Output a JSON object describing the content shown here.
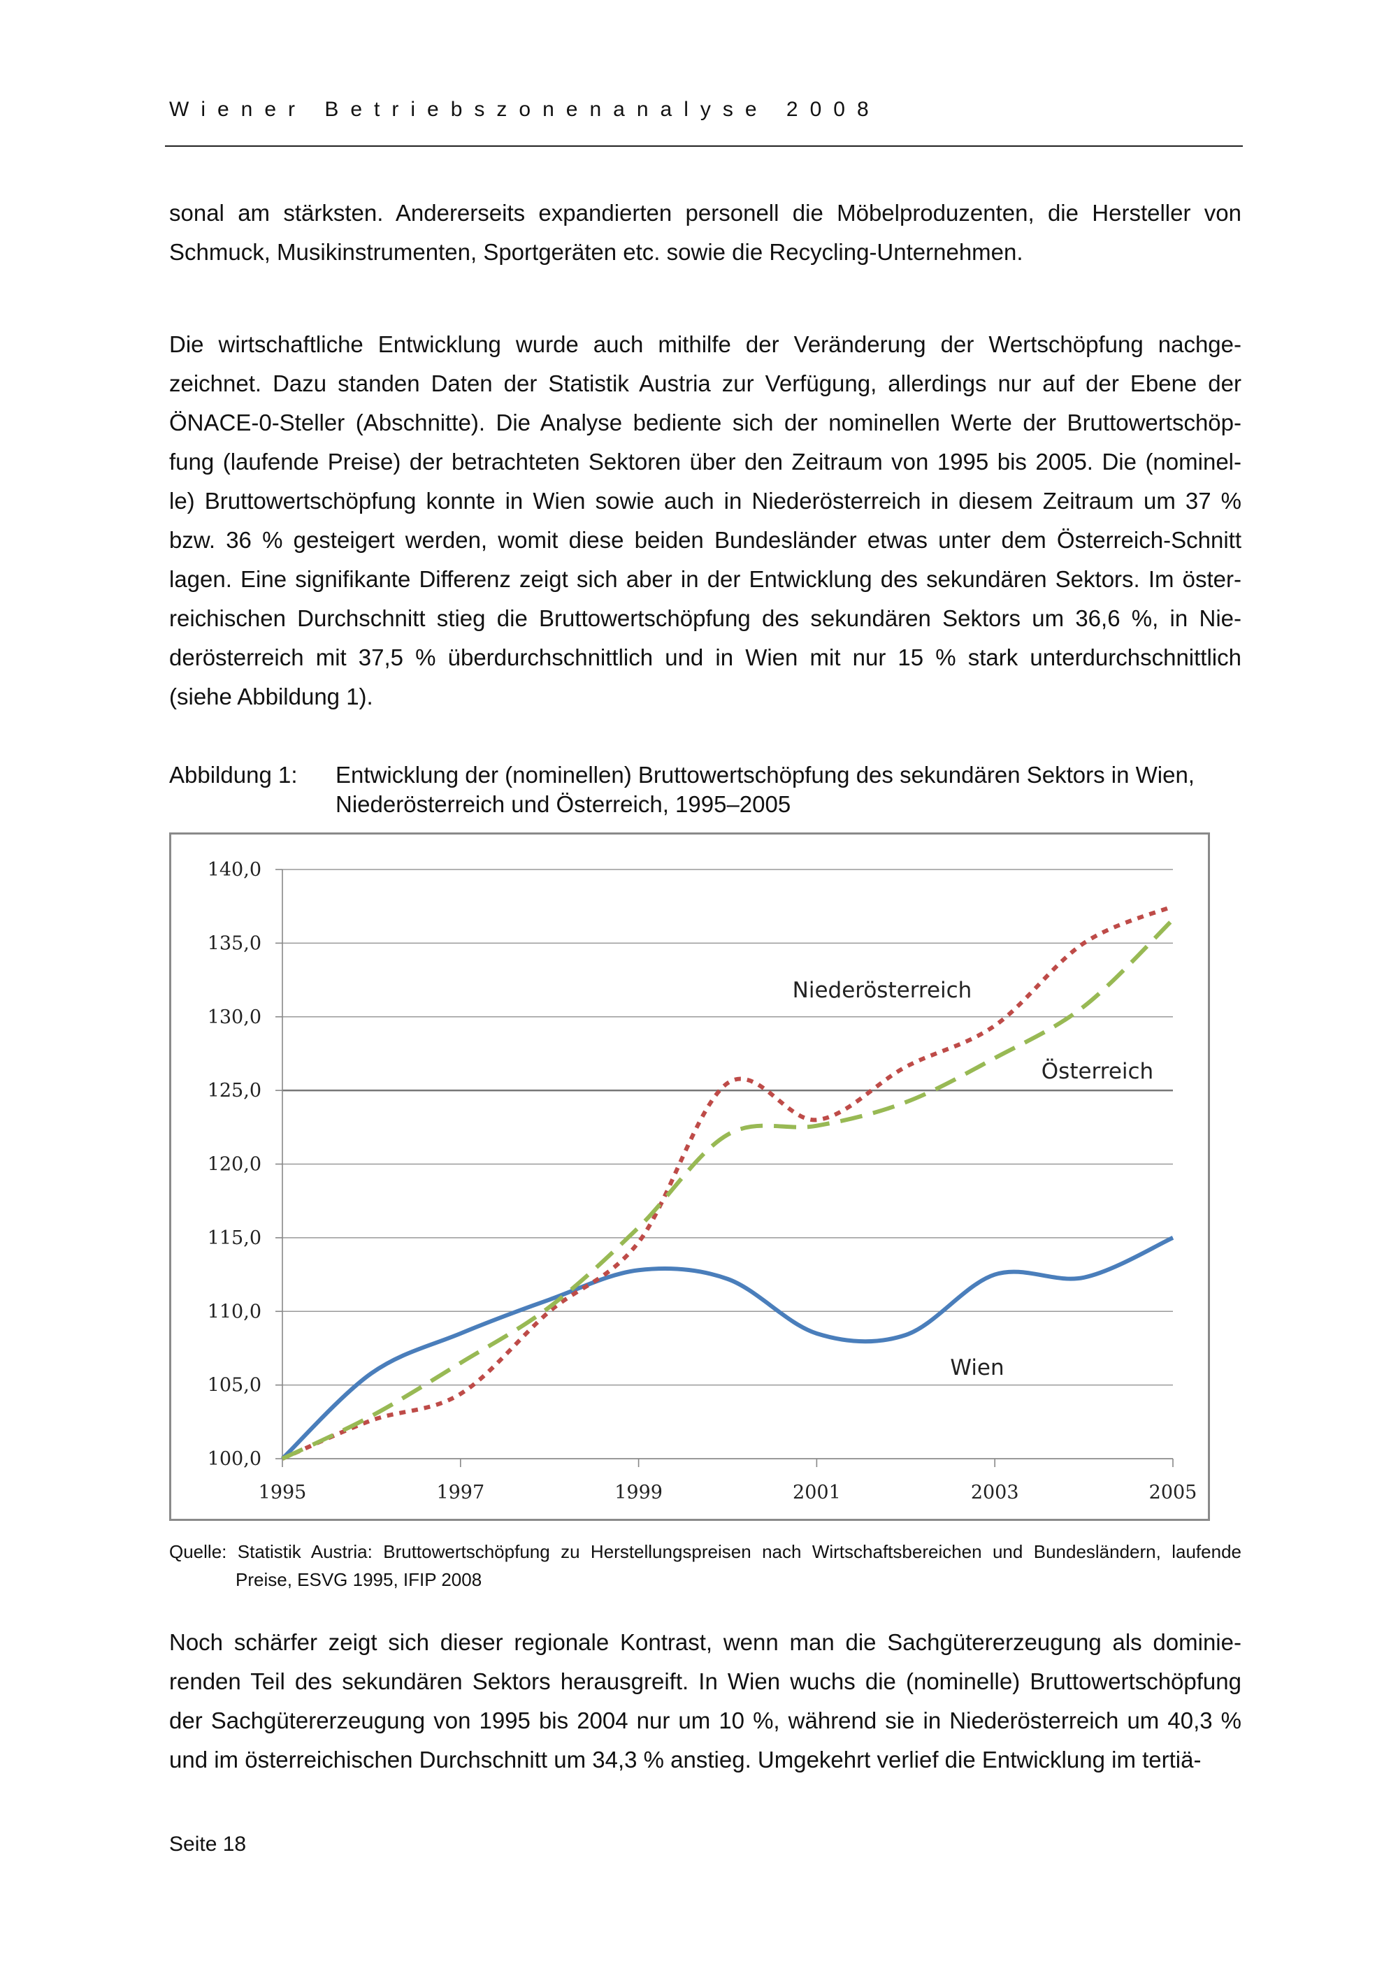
{
  "header": {
    "title": "Wiener Betriebszonenanalyse 2008"
  },
  "paragraphs": [
    [
      "sonal am stärksten. Andererseits expandierten personell die Möbelproduzenten, die Hersteller von",
      "Schmuck, Musikinstrumenten, Sportgeräten etc. sowie die Recycling-Unternehmen."
    ],
    [
      "Die wirtschaftliche Entwicklung wurde auch mithilfe der Veränderung der Wertschöpfung nachge-",
      "zeichnet. Dazu standen Daten der Statistik Austria zur Verfügung, allerdings nur auf der Ebene der",
      "ÖNACE-0-Steller (Abschnitte). Die Analyse bediente sich der nominellen Werte der Bruttowertschöp-",
      "fung (laufende Preise) der betrachteten Sektoren über den Zeitraum von 1995 bis 2005. Die (nominel-",
      "le) Bruttowertschöpfung konnte in Wien sowie auch in Niederösterreich in diesem Zeitraum um 37 %",
      "bzw. 36 % gesteigert werden, womit diese beiden Bundesländer etwas unter dem Österreich-Schnitt",
      "lagen. Eine signifikante Differenz zeigt sich aber in der Entwicklung des sekundären Sektors. Im öster-",
      "reichischen Durchschnitt stieg die Bruttowertschöpfung des sekundären Sektors um 36,6 %, in Nie-",
      "derösterreich mit 37,5 % überdurchschnittlich und in Wien mit nur 15 % stark unterdurchschnittlich",
      "(siehe Abbildung 1)."
    ],
    [
      "Noch schärfer zeigt sich dieser regionale Kontrast, wenn man die Sachgütererzeugung als dominie-",
      "renden Teil des sekundären Sektors herausgreift. In Wien wuchs die (nominelle) Bruttowertschöpfung",
      "der Sachgütererzeugung von 1995 bis 2004 nur um 10 %, während sie in Niederösterreich um 40,3 %",
      "und im österreichischen Durchschnitt um 34,3 % anstieg. Umgekehrt verlief die Entwicklung im tertiä-"
    ]
  ],
  "figure": {
    "label": "Abbildung 1:",
    "caption": "Entwicklung der (nominellen) Bruttowertschöpfung des sekundären Sektors in Wien, Niederösterreich und Österreich, 1995–2005",
    "source_line1": "Quelle: Statistik Austria: Bruttowertschöpfung zu Herstellungspreisen nach Wirtschaftsbereichen und Bundesländern, laufende",
    "source_line2": "Preise, ESVG 1995, IFIP 2008"
  },
  "chart_data": {
    "type": "line",
    "title": "",
    "xlabel": "",
    "ylabel": "",
    "x": [
      1995,
      1996,
      1997,
      1998,
      1999,
      2000,
      2001,
      2002,
      2003,
      2004,
      2005
    ],
    "x_ticks": [
      "1995",
      "1997",
      "1999",
      "2001",
      "2003",
      "2005"
    ],
    "y_ticks": [
      "100,0",
      "105,0",
      "110,0",
      "115,0",
      "120,0",
      "125,0",
      "130,0",
      "135,0",
      "140,0"
    ],
    "ylim": [
      100,
      140
    ],
    "grid": "horizontal",
    "legend": "inline labels",
    "series": [
      {
        "name": "Wien",
        "color": "#4a7ebb",
        "style": "solid",
        "values": [
          100.0,
          105.8,
          108.5,
          110.8,
          112.8,
          112.2,
          108.5,
          108.4,
          112.5,
          112.3,
          115.0
        ]
      },
      {
        "name": "Niederösterreich",
        "color": "#be4b48",
        "style": "dotted",
        "values": [
          100.0,
          102.6,
          104.4,
          110.0,
          114.7,
          125.5,
          123.0,
          126.6,
          129.4,
          135.0,
          137.5
        ]
      },
      {
        "name": "Österreich",
        "color": "#98b954",
        "style": "dashed",
        "values": [
          100.0,
          102.9,
          106.5,
          110.3,
          115.7,
          122.0,
          122.6,
          124.2,
          127.2,
          130.7,
          136.6
        ]
      }
    ]
  },
  "footer": {
    "page": "Seite 18"
  }
}
